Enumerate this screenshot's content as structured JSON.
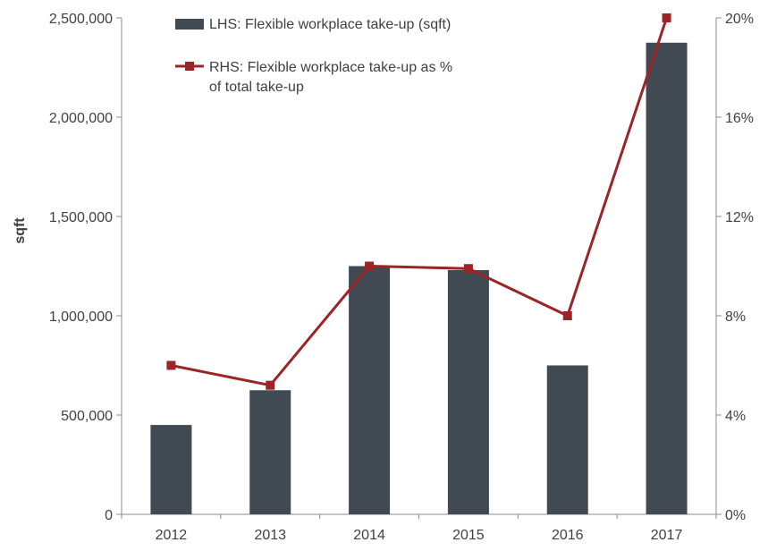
{
  "chart_data": {
    "type": "bar",
    "categories": [
      "2012",
      "2013",
      "2014",
      "2015",
      "2016",
      "2017"
    ],
    "series": [
      {
        "name": "LHS: Flexible workplace take-up (sqft)",
        "type": "bar",
        "axis": "left",
        "color": "#414a52",
        "values": [
          450000,
          625000,
          1250000,
          1230000,
          750000,
          2375000
        ]
      },
      {
        "name": "RHS: Flexible workplace take-up as % of total take-up",
        "type": "line",
        "axis": "right",
        "color": "#9b2427",
        "values": [
          6.0,
          5.2,
          10.0,
          9.9,
          8.0,
          20.0
        ]
      }
    ],
    "ylabel": "sqft",
    "ylim": [
      0,
      2500000
    ],
    "y_ticks": [
      "0",
      "500,000",
      "1,000,000",
      "1,500,000",
      "2,000,000",
      "2,500,000"
    ],
    "y2lim": [
      0,
      20
    ],
    "y2_ticks": [
      "0%",
      "4%",
      "8%",
      "12%",
      "16%",
      "20%"
    ],
    "legend_position": "top-left",
    "legend_lines": [
      [
        "LHS: Flexible workplace take-up (sqft)"
      ],
      [
        "RHS: Flexible workplace take-up as %",
        "of total take-up"
      ]
    ],
    "grid": false
  }
}
